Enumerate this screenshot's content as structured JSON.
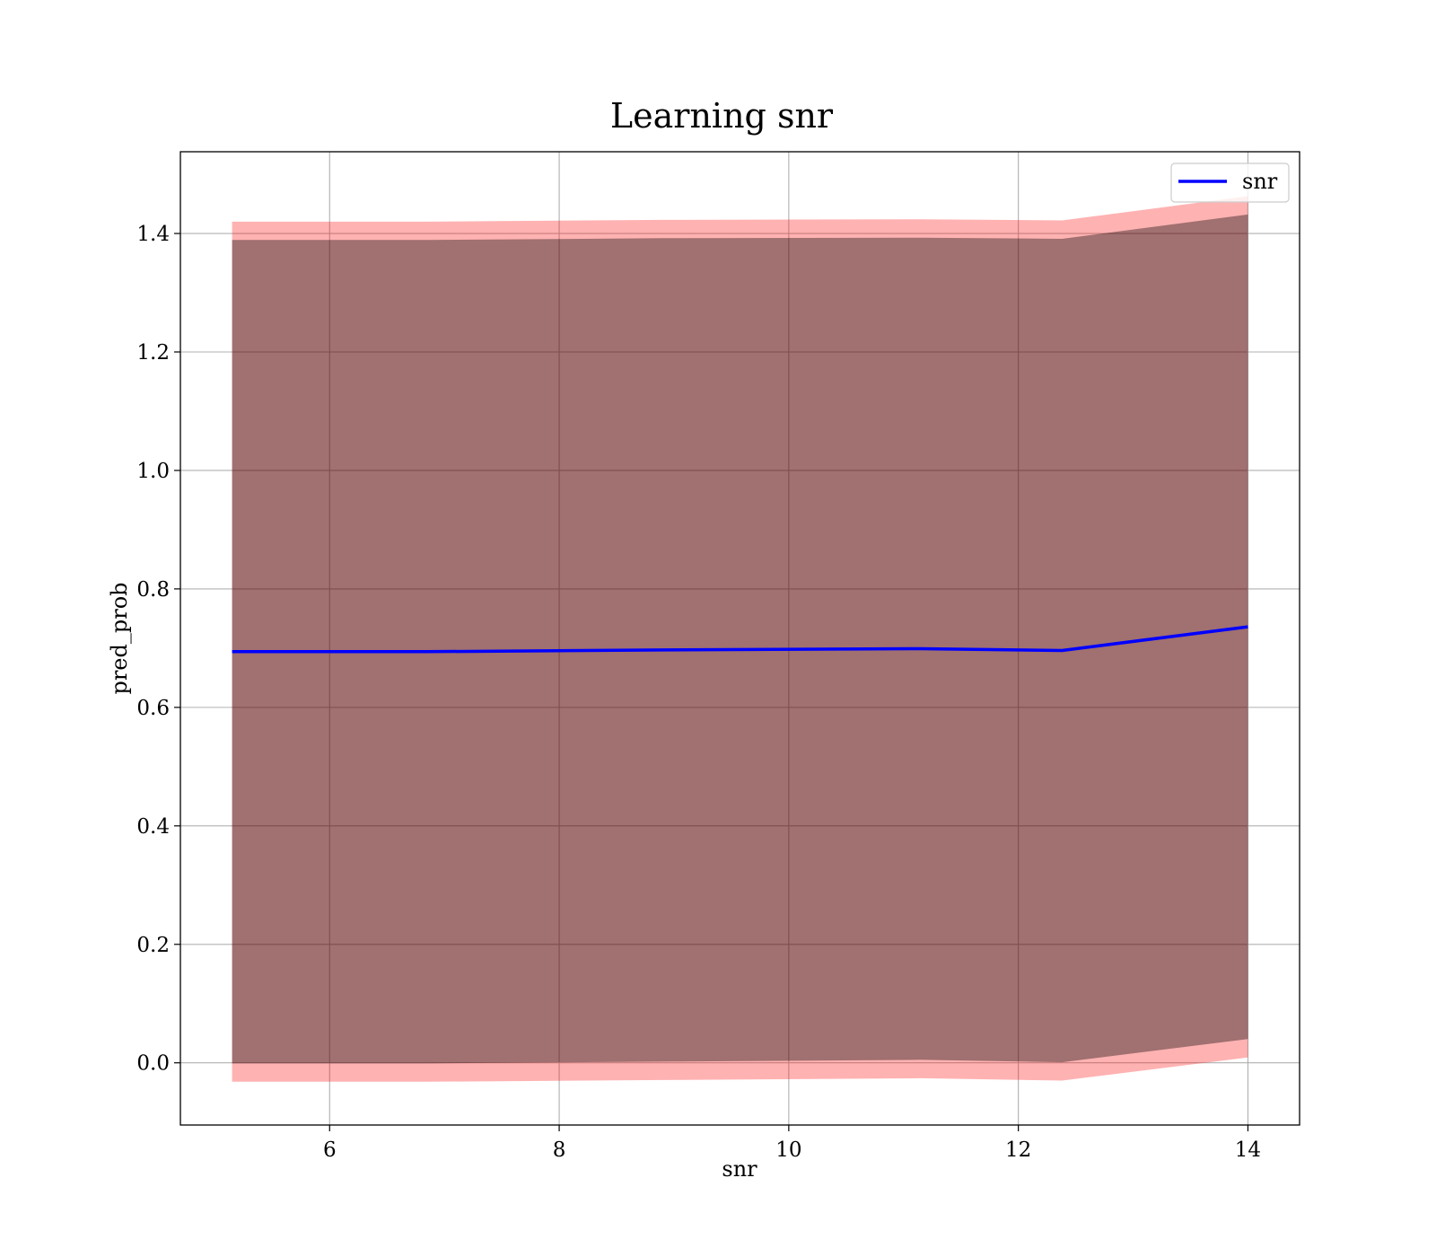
{
  "chart_data": {
    "type": "line",
    "title": "Learning snr",
    "xlabel": "snr",
    "ylabel": "pred_prob",
    "xlim": [
      4.7,
      14.45
    ],
    "ylim": [
      -0.105,
      1.538
    ],
    "xticks": [
      6,
      8,
      10,
      12,
      14
    ],
    "yticks": [
      0.0,
      0.2,
      0.4,
      0.6,
      0.8,
      1.0,
      1.2,
      1.4
    ],
    "grid": true,
    "legend": {
      "position": "top-right",
      "entries": [
        "snr"
      ]
    },
    "x": [
      5.15,
      6.85,
      8.9,
      11.15,
      12.38,
      14.0
    ],
    "series": [
      {
        "name": "snr",
        "color": "#0000ff",
        "values": [
          0.694,
          0.694,
          0.697,
          0.699,
          0.696,
          0.736
        ]
      }
    ],
    "bands": [
      {
        "color": "#ff0000",
        "opacity": 0.3,
        "lower": [
          -0.032,
          -0.032,
          -0.029,
          -0.026,
          -0.03,
          0.009
        ],
        "upper": [
          1.42,
          1.42,
          1.423,
          1.424,
          1.422,
          1.463
        ]
      },
      {
        "color": "#000000",
        "opacity": 0.37,
        "lower": [
          -0.001,
          -0.001,
          0.002,
          0.005,
          0.001,
          0.04
        ],
        "upper": [
          1.389,
          1.389,
          1.392,
          1.393,
          1.391,
          1.432
        ]
      }
    ]
  }
}
